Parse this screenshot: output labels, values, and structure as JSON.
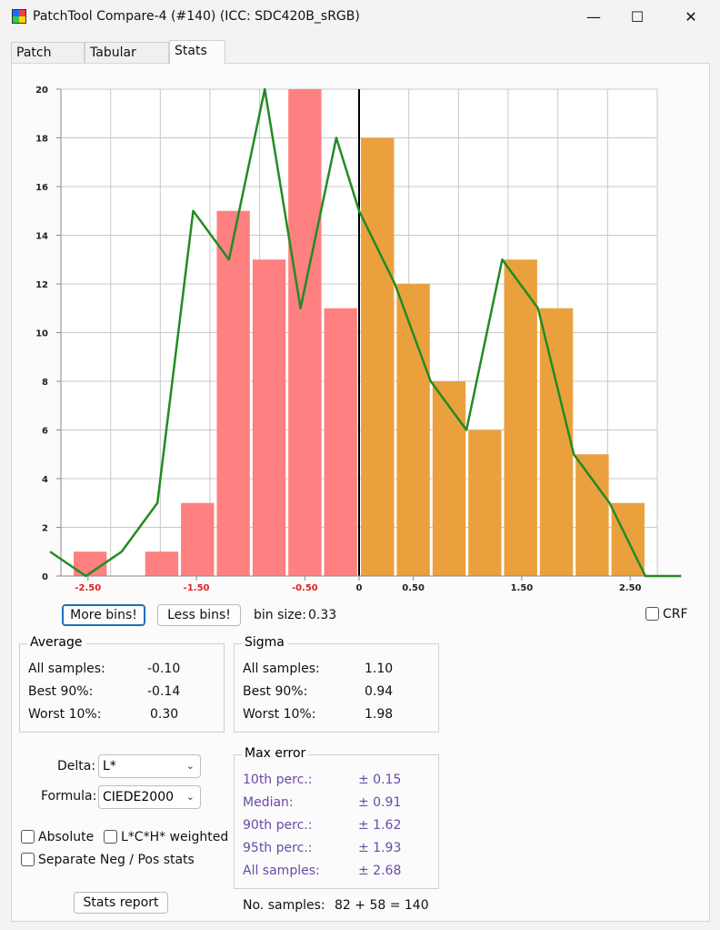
{
  "window": {
    "title": "PatchTool Compare-4 (#140) (ICC: SDC420B_sRGB)",
    "minimize": "—",
    "maximize": "☐",
    "close": "✕"
  },
  "tabs": [
    {
      "label": "Patch view",
      "active": false
    },
    {
      "label": "Tabular data",
      "active": false
    },
    {
      "label": "Stats",
      "active": true
    }
  ],
  "chart_data": {
    "type": "bar",
    "title": "",
    "xlabel": "",
    "ylabel": "",
    "ylim": [
      0,
      20
    ],
    "xlim": [
      -2.75,
      2.75
    ],
    "grid": true,
    "yticks": [
      "0",
      "2",
      "4",
      "6",
      "8",
      "10",
      "12",
      "14",
      "16",
      "18",
      "20"
    ],
    "xticks": [
      {
        "label": "-2.50",
        "value": -2.5,
        "negative": true
      },
      {
        "label": "-1.50",
        "value": -1.5,
        "negative": true
      },
      {
        "label": "-0.50",
        "value": -0.5,
        "negative": true
      },
      {
        "label": "0",
        "value": 0,
        "negative": false
      },
      {
        "label": "0.50",
        "value": 0.5,
        "negative": false
      },
      {
        "label": "1.50",
        "value": 1.5,
        "negative": false
      },
      {
        "label": "2.50",
        "value": 2.5,
        "negative": false
      }
    ],
    "bin_size": 0.33,
    "bins": [
      {
        "center": -2.48,
        "value": 1
      },
      {
        "center": -2.15,
        "value": 0
      },
      {
        "center": -1.82,
        "value": 1
      },
      {
        "center": -1.49,
        "value": 3
      },
      {
        "center": -1.16,
        "value": 15
      },
      {
        "center": -0.83,
        "value": 13
      },
      {
        "center": -0.5,
        "value": 20
      },
      {
        "center": -0.17,
        "value": 11
      },
      {
        "center": 0.17,
        "value": 18
      },
      {
        "center": 0.5,
        "value": 12
      },
      {
        "center": 0.83,
        "value": 8
      },
      {
        "center": 1.16,
        "value": 6
      },
      {
        "center": 1.49,
        "value": 13
      },
      {
        "center": 1.82,
        "value": 11
      },
      {
        "center": 2.15,
        "value": 5
      },
      {
        "center": 2.48,
        "value": 3
      }
    ],
    "curve": {
      "x": [
        -2.85,
        -2.52,
        -2.19,
        -1.86,
        -1.53,
        -1.2,
        -0.87,
        -0.54,
        -0.21,
        0.0,
        0.33,
        0.66,
        0.99,
        1.32,
        1.65,
        1.98,
        2.31,
        2.64,
        2.97
      ],
      "y": [
        1,
        0,
        1,
        3,
        15,
        13,
        20,
        11,
        18,
        15,
        12,
        8,
        6,
        13,
        11,
        5,
        3,
        0,
        0
      ]
    },
    "colors": {
      "negative": "#ff8080",
      "positive": "#eba03e",
      "curve": "#228b22",
      "zero_line": "#000000",
      "grid": "#c8c8c8"
    }
  },
  "controls": {
    "more_bins": "More bins!",
    "less_bins": "Less bins!",
    "bin_size_label": "bin size:",
    "bin_size_value": "0.33",
    "crf_label": "CRF"
  },
  "average": {
    "title": "Average",
    "rows": [
      {
        "label": "All samples:",
        "value": "-0.10"
      },
      {
        "label": "Best 90%:",
        "value": "-0.14"
      },
      {
        "label": "Worst 10%:",
        "value": "0.30"
      }
    ]
  },
  "sigma": {
    "title": "Sigma",
    "rows": [
      {
        "label": "All samples:",
        "value": "1.10"
      },
      {
        "label": "Best 90%:",
        "value": "0.94"
      },
      {
        "label": "Worst 10%:",
        "value": "1.98"
      }
    ]
  },
  "settings": {
    "delta_label": "Delta:",
    "delta_value": "L*",
    "formula_label": "Formula:",
    "formula_value": "CIEDE2000",
    "absolute_label": "Absolute",
    "lch_label": "L*C*H* weighted",
    "separate_label": "Separate Neg / Pos stats",
    "stats_report": "Stats report"
  },
  "max_error": {
    "title": "Max error",
    "rows": [
      {
        "label": "10th perc.:",
        "value": "± 0.15"
      },
      {
        "label": "Median:",
        "value": "± 0.91"
      },
      {
        "label": "90th perc.:",
        "value": "± 1.62"
      },
      {
        "label": "95th perc.:",
        "value": "± 1.93"
      },
      {
        "label": "All samples:",
        "value": "± 2.68"
      }
    ]
  },
  "samples": {
    "label": "No. samples:",
    "value": "82 + 58 = 140"
  }
}
